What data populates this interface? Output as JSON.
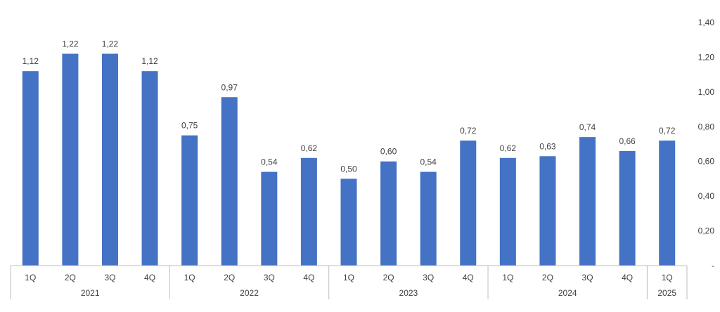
{
  "chart_data": {
    "type": "bar",
    "title": "",
    "xlabel": "",
    "ylabel": "",
    "ylim": [
      0,
      1.4
    ],
    "y_ticks": [
      "-",
      "0,20",
      "0,40",
      "0,60",
      "0,80",
      "1,00",
      "1,20",
      "1,40"
    ],
    "y_axis_position": "right",
    "grid": false,
    "legend": "none",
    "bar_color": "#4472C4",
    "groups": [
      {
        "label": "2021",
        "quarters": [
          "1Q",
          "2Q",
          "3Q",
          "4Q"
        ]
      },
      {
        "label": "2022",
        "quarters": [
          "1Q",
          "2Q",
          "3Q",
          "4Q"
        ]
      },
      {
        "label": "2023",
        "quarters": [
          "1Q",
          "2Q",
          "3Q",
          "4Q"
        ]
      },
      {
        "label": "2024",
        "quarters": [
          "1Q",
          "2Q",
          "3Q",
          "4Q"
        ]
      },
      {
        "label": "2025",
        "quarters": [
          "1Q"
        ]
      }
    ],
    "values": [
      1.12,
      1.22,
      1.22,
      1.12,
      0.75,
      0.97,
      0.54,
      0.62,
      0.5,
      0.6,
      0.54,
      0.72,
      0.62,
      0.63,
      0.74,
      0.66,
      0.72
    ],
    "value_labels": [
      "1,12",
      "1,22",
      "1,22",
      "1,12",
      "0,75",
      "0,97",
      "0,54",
      "0,62",
      "0,50",
      "0,60",
      "0,54",
      "0,72",
      "0,62",
      "0,63",
      "0,74",
      "0,66",
      "0,72"
    ]
  }
}
